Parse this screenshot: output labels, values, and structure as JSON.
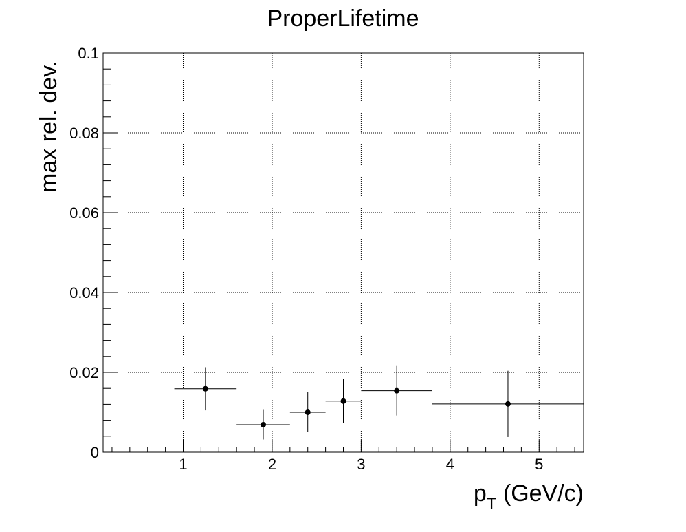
{
  "chart_data": {
    "type": "scatter",
    "title": "ProperLifetime",
    "xlabel_main": "p",
    "xlabel_sub": "T",
    "xlabel_rest": " (GeV/c)",
    "ylabel": "max rel. dev.",
    "xlim": [
      0.1,
      5.5
    ],
    "ylim": [
      0,
      0.1
    ],
    "grid": true,
    "x_ticks": [
      1,
      2,
      3,
      4,
      5
    ],
    "y_ticks": [
      0,
      0.02,
      0.04,
      0.06,
      0.08,
      0.1
    ],
    "x_tick_labels": [
      "1",
      "2",
      "3",
      "4",
      "5"
    ],
    "y_tick_labels": [
      "0",
      "0.02",
      "0.04",
      "0.06",
      "0.08",
      "0.1"
    ],
    "points": [
      {
        "x": 1.25,
        "y": 0.0159,
        "xlow": 0.9,
        "xhigh": 1.6,
        "yerr": 0.0054
      },
      {
        "x": 1.9,
        "y": 0.0069,
        "xlow": 1.6,
        "xhigh": 2.2,
        "yerr": 0.0037
      },
      {
        "x": 2.4,
        "y": 0.01,
        "xlow": 2.2,
        "xhigh": 2.6,
        "yerr": 0.005
      },
      {
        "x": 2.8,
        "y": 0.0128,
        "xlow": 2.6,
        "xhigh": 3.0,
        "yerr": 0.0055
      },
      {
        "x": 3.4,
        "y": 0.0154,
        "xlow": 3.0,
        "xhigh": 3.8,
        "yerr": 0.0062
      },
      {
        "x": 4.65,
        "y": 0.0121,
        "xlow": 3.8,
        "xhigh": 5.5,
        "yerr": 0.0083
      }
    ],
    "colors": {
      "marker": "#000000",
      "axis": "#000000",
      "grid": "#000000"
    }
  }
}
